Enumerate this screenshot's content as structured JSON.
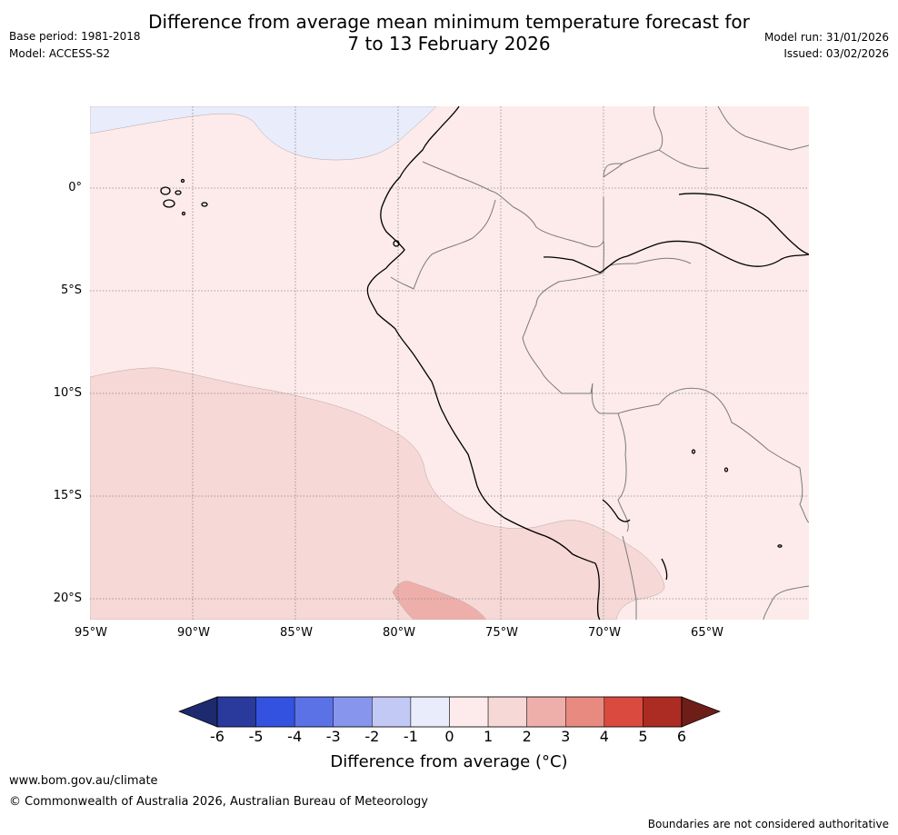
{
  "header": {
    "title_line1": "Difference from average mean minimum temperature forecast for",
    "title_line2": "7 to 13 February 2026",
    "base_period": "Base period: 1981-2018",
    "model": "Model: ACCESS-S2",
    "model_run": "Model run: 31/01/2026",
    "issued": "Issued: 03/02/2026"
  },
  "map": {
    "lat_labels": [
      "0°",
      "5°S",
      "10°S",
      "15°S",
      "20°S"
    ],
    "lon_labels": [
      "95°W",
      "90°W",
      "85°W",
      "80°W",
      "75°W",
      "70°W",
      "65°W"
    ],
    "colors": {
      "ocean_bg": "#fcebea",
      "cool_patch": "#e8ecfb",
      "warm_patch": "#f6d8d6",
      "warm_patch2": "#eeafab",
      "coast": "#000000",
      "border": "#7a7a7a",
      "grid": "#888888"
    }
  },
  "colorbar": {
    "ticks": [
      "-6",
      "-5",
      "-4",
      "-3",
      "-2",
      "-1",
      "0",
      "1",
      "2",
      "3",
      "4",
      "5",
      "6"
    ],
    "colors": [
      "#2a3a9c",
      "#3452e0",
      "#5b72e6",
      "#8796ec",
      "#c2c9f4",
      "#e8ecfb",
      "#fcebea",
      "#f6d8d6",
      "#eeafab",
      "#e88a80",
      "#da4a3e",
      "#ac2b22"
    ],
    "low_arrow_color": "#1e2a6e",
    "high_arrow_color": "#6e1e18",
    "label": "Difference from average (°C)"
  },
  "footer": {
    "url": "www.bom.gov.au/climate",
    "copyright": "© Commonwealth of Australia 2026, Australian Bureau of Meteorology",
    "disclaimer": "Boundaries are not considered authoritative"
  }
}
